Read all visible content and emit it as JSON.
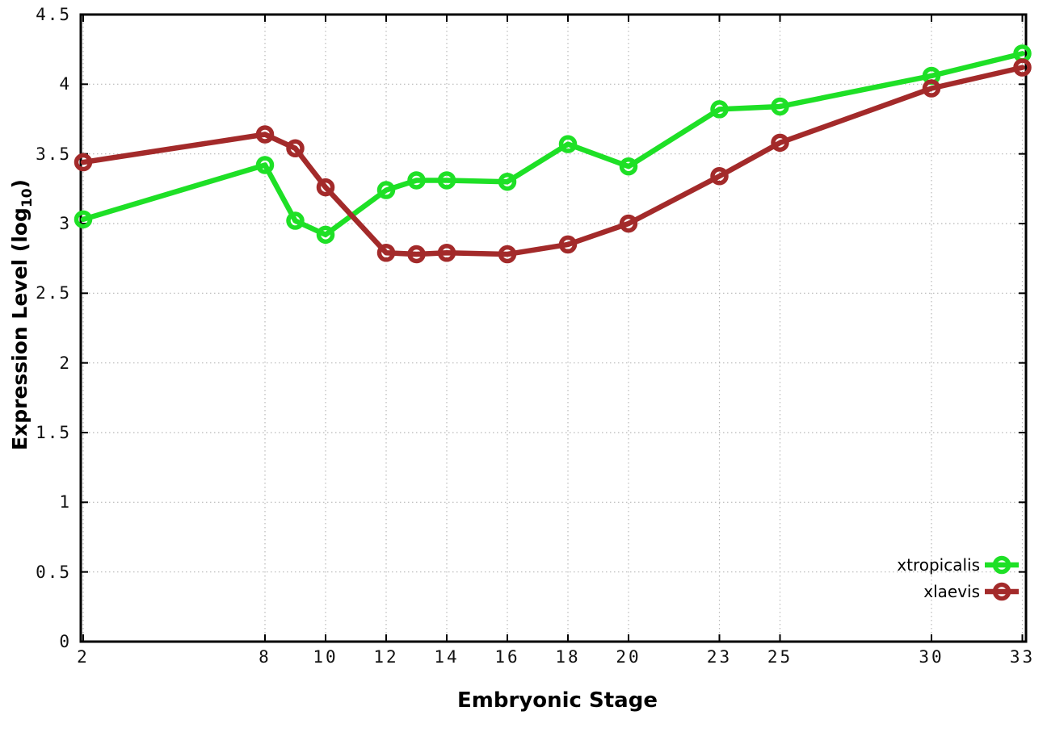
{
  "chart_data": {
    "type": "line",
    "title": "",
    "xlabel": "Embryonic Stage",
    "ylabel": "Expression Level (log10)",
    "ylabel_main": "Expression Level (log",
    "ylabel_sub": "10",
    "ylabel_end": ")",
    "xlim": [
      2,
      33
    ],
    "ylim": [
      0,
      4.5
    ],
    "grid": true,
    "legend_position": "bottom-right-inside",
    "x": [
      2,
      8,
      9,
      10,
      12,
      13,
      14,
      16,
      18,
      20,
      23,
      25,
      30,
      33
    ],
    "xticks": [
      2,
      8,
      10,
      12,
      14,
      16,
      18,
      20,
      23,
      25,
      30,
      33
    ],
    "xtick_labels": [
      "2",
      "8",
      "10",
      "12",
      "14",
      "16",
      "18",
      "20",
      "23",
      "25",
      "30",
      "33"
    ],
    "yticks": [
      0,
      0.5,
      1,
      1.5,
      2,
      2.5,
      3,
      3.5,
      4,
      4.5
    ],
    "ytick_labels": [
      "0",
      "0.5",
      "1",
      "1.5",
      "2",
      "2.5",
      "3",
      "3.5",
      "4",
      "4.5"
    ],
    "series": [
      {
        "name": "xtropicalis",
        "color": "#1ee026",
        "marker": "open-circle",
        "values": [
          3.03,
          3.42,
          3.02,
          2.92,
          3.24,
          3.31,
          3.31,
          3.3,
          3.57,
          3.41,
          3.82,
          3.84,
          4.06,
          4.22
        ]
      },
      {
        "name": "xlaevis",
        "color": "#a32a2a",
        "marker": "open-circle",
        "values": [
          3.44,
          3.64,
          3.54,
          3.26,
          2.79,
          2.78,
          2.79,
          2.78,
          2.85,
          3.0,
          3.34,
          3.58,
          3.97,
          4.12
        ]
      }
    ],
    "colors": {
      "axis": "#000000",
      "grid": "#b8b8b8",
      "background": "#ffffff"
    }
  }
}
